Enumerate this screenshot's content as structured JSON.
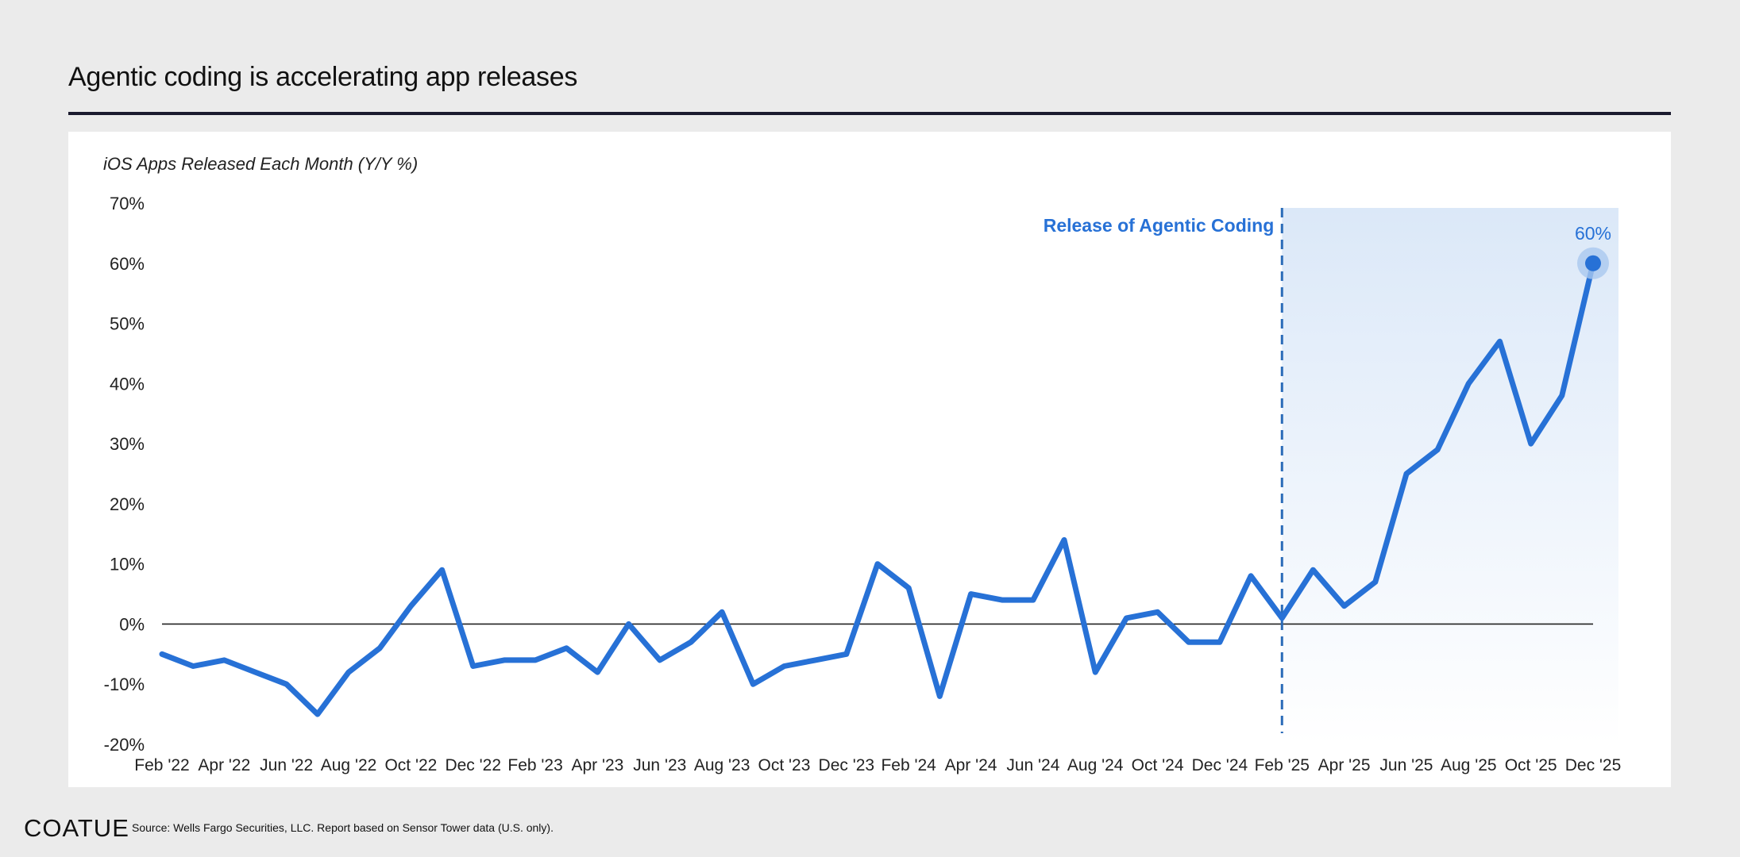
{
  "page": {
    "title": "Agentic coding is accelerating app releases",
    "footer_logo": "COATUE",
    "footer_source": "Source: Wells Fargo Securities, LLC. Report based on Sensor Tower data (U.S. only)."
  },
  "colors": {
    "line": "#2771d6",
    "annotation": "#2771d6",
    "shade_top": "#dbe8f8",
    "shade_bottom": "#ffffff",
    "zero_line": "#222222",
    "marker_halo": "#a9c8ef"
  },
  "chart_data": {
    "type": "line",
    "title": "iOS Apps Released Each Month (Y/Y %)",
    "xlabel": "",
    "ylabel": "",
    "ylim": [
      -20,
      70
    ],
    "yticks": [
      70,
      60,
      50,
      40,
      30,
      20,
      10,
      0,
      -10,
      -20
    ],
    "ytick_labels": [
      "70%",
      "60%",
      "50%",
      "40%",
      "30%",
      "20%",
      "10%",
      "0%",
      "-10%",
      "-20%"
    ],
    "grid": false,
    "x_tick_labels": [
      "Feb '22",
      "Apr '22",
      "Jun '22",
      "Aug '22",
      "Oct '22",
      "Dec '22",
      "Feb '23",
      "Apr '23",
      "Jun '23",
      "Aug '23",
      "Oct '23",
      "Dec '23",
      "Feb '24",
      "Apr '24",
      "Jun '24",
      "Aug '24",
      "Oct '24",
      "Dec '24",
      "Feb '25",
      "Apr '25",
      "Jun '25",
      "Aug '25",
      "Oct '25",
      "Dec '25"
    ],
    "series": [
      {
        "name": "iOS Apps Released Each Month (Y/Y %)",
        "values": [
          -5,
          -7,
          -6,
          -8,
          -10,
          -15,
          -8,
          -4,
          3,
          9,
          -7,
          -6,
          -6,
          -4,
          -8,
          0,
          -6,
          -3,
          2,
          -10,
          -7,
          -6,
          -5,
          10,
          6,
          -12,
          5,
          4,
          4,
          14,
          -8,
          1,
          2,
          -3,
          -3,
          8,
          1,
          9,
          3,
          7,
          25,
          29,
          40,
          47,
          30,
          38,
          60
        ]
      }
    ],
    "annotations": [
      {
        "text": "Release of Agentic Coding",
        "at_month_index": 36,
        "style": "vertical-dashed-line"
      },
      {
        "text": "60%",
        "at_month_index": 46,
        "style": "highlighted-point"
      }
    ]
  }
}
